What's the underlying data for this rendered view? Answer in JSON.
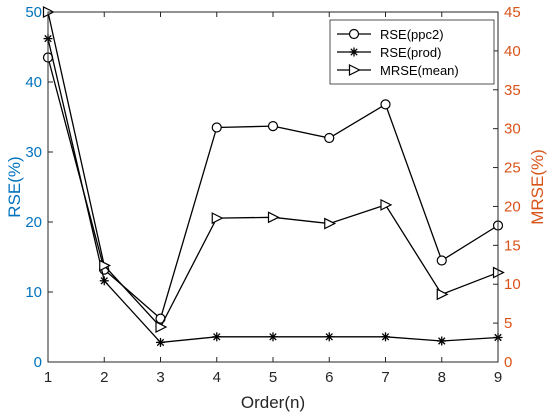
{
  "chart_data": {
    "type": "line",
    "x": [
      1,
      2,
      3,
      4,
      5,
      6,
      7,
      8,
      9
    ],
    "xlabel": "Order(n)",
    "x_ticks": [
      "1",
      "2",
      "3",
      "4",
      "5",
      "6",
      "7",
      "8",
      "9"
    ],
    "left_axis": {
      "label": "RSE(%)",
      "ylim": [
        0,
        50
      ],
      "ticks": [
        "0",
        "10",
        "20",
        "30",
        "40",
        "50"
      ],
      "color": "#0072BD"
    },
    "right_axis": {
      "label": "MRSE(%)",
      "ylim": [
        0,
        45
      ],
      "ticks": [
        "0",
        "5",
        "10",
        "15",
        "20",
        "25",
        "30",
        "35",
        "40",
        "45"
      ],
      "color": "#D95319"
    },
    "series": [
      {
        "name": "RSE(ppc2)",
        "axis": "left",
        "marker": "circle",
        "values": [
          43.5,
          13.2,
          6.2,
          33.5,
          33.7,
          32.0,
          36.8,
          14.5,
          19.5
        ]
      },
      {
        "name": "RSE(prod)",
        "axis": "left",
        "marker": "star",
        "values": [
          46.2,
          11.6,
          2.8,
          3.6,
          3.6,
          3.6,
          3.6,
          3.0,
          3.5
        ]
      },
      {
        "name": "MRSE(mean)",
        "axis": "right",
        "marker": "triangle-right",
        "values": [
          45.0,
          12.4,
          4.5,
          18.5,
          18.6,
          17.8,
          20.2,
          8.7,
          11.5
        ]
      }
    ],
    "legend_position": "top-right",
    "grid": false,
    "line_color": "#000000"
  }
}
